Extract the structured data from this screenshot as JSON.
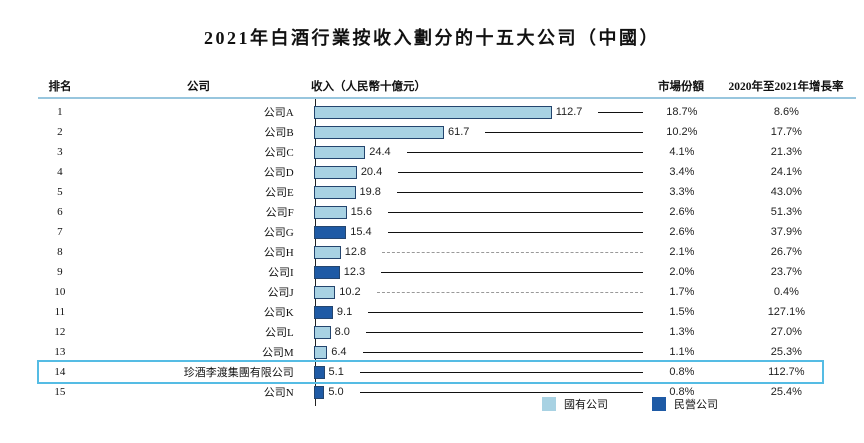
{
  "page": {
    "title": "2021年白酒行業按收入劃分的十五大公司（中國）"
  },
  "table": {
    "headers": {
      "rank": "排名",
      "company": "公司",
      "revenue": "收入（人民幣十億元）",
      "market_share": "市場份額",
      "growth": "2020年至2021年增長率"
    }
  },
  "legend": {
    "items": [
      {
        "label": "國有公司",
        "ownership": "state",
        "color": "#a8d2e3"
      },
      {
        "label": "民營公司",
        "ownership": "private",
        "color": "#1e5aa5"
      }
    ]
  },
  "colors": {
    "state_owned_bar": "#a8d2e3",
    "private_bar": "#1e5aa5",
    "bar_border": "#24456e",
    "highlight_border": "#55bce4",
    "header_rule": "#98c6de",
    "leader_solid": "#111111",
    "leader_dashed": "#999999"
  },
  "chart_data": {
    "type": "bar",
    "orientation": "horizontal",
    "title": "2021年白酒行業按收入劃分的十五大公司（中國）",
    "value_unit": "人民幣十億元",
    "value_axis_range": [
      0,
      120
    ],
    "legend_position": "bottom",
    "series_legend": [
      "國有公司",
      "民營公司"
    ],
    "rows": [
      {
        "rank": "1",
        "company": "公司A",
        "revenue": 112.7,
        "market_share": "18.7%",
        "growth": "8.6%",
        "ownership": "state",
        "leader_style": "solid",
        "highlighted": false
      },
      {
        "rank": "2",
        "company": "公司B",
        "revenue": 61.7,
        "market_share": "10.2%",
        "growth": "17.7%",
        "ownership": "state",
        "leader_style": "solid",
        "highlighted": false
      },
      {
        "rank": "3",
        "company": "公司C",
        "revenue": 24.4,
        "market_share": "4.1%",
        "growth": "21.3%",
        "ownership": "state",
        "leader_style": "solid",
        "highlighted": false
      },
      {
        "rank": "4",
        "company": "公司D",
        "revenue": 20.4,
        "market_share": "3.4%",
        "growth": "24.1%",
        "ownership": "state",
        "leader_style": "solid",
        "highlighted": false
      },
      {
        "rank": "5",
        "company": "公司E",
        "revenue": 19.8,
        "market_share": "3.3%",
        "growth": "43.0%",
        "ownership": "state",
        "leader_style": "solid",
        "highlighted": false
      },
      {
        "rank": "6",
        "company": "公司F",
        "revenue": 15.6,
        "market_share": "2.6%",
        "growth": "51.3%",
        "ownership": "state",
        "leader_style": "solid",
        "highlighted": false
      },
      {
        "rank": "7",
        "company": "公司G",
        "revenue": 15.4,
        "market_share": "2.6%",
        "growth": "37.9%",
        "ownership": "private",
        "leader_style": "solid",
        "highlighted": false
      },
      {
        "rank": "8",
        "company": "公司H",
        "revenue": 12.8,
        "market_share": "2.1%",
        "growth": "26.7%",
        "ownership": "state",
        "leader_style": "dashed",
        "highlighted": false
      },
      {
        "rank": "9",
        "company": "公司I",
        "revenue": 12.3,
        "market_share": "2.0%",
        "growth": "23.7%",
        "ownership": "private",
        "leader_style": "solid",
        "highlighted": false
      },
      {
        "rank": "10",
        "company": "公司J",
        "revenue": 10.2,
        "market_share": "1.7%",
        "growth": "0.4%",
        "ownership": "state",
        "leader_style": "dashed",
        "highlighted": false
      },
      {
        "rank": "11",
        "company": "公司K",
        "revenue": 9.1,
        "market_share": "1.5%",
        "growth": "127.1%",
        "ownership": "private",
        "leader_style": "solid",
        "highlighted": false
      },
      {
        "rank": "12",
        "company": "公司L",
        "revenue": 8.0,
        "market_share": "1.3%",
        "growth": "27.0%",
        "ownership": "state",
        "leader_style": "solid",
        "highlighted": false
      },
      {
        "rank": "13",
        "company": "公司M",
        "revenue": 6.4,
        "market_share": "1.1%",
        "growth": "25.3%",
        "ownership": "state",
        "leader_style": "solid",
        "highlighted": false
      },
      {
        "rank": "14",
        "company": "珍酒李渡集團有限公司",
        "revenue": 5.1,
        "market_share": "0.8%",
        "growth": "112.7%",
        "ownership": "private",
        "leader_style": "solid",
        "highlighted": true
      },
      {
        "rank": "15",
        "company": "公司N",
        "revenue": 5.0,
        "market_share": "0.8%",
        "growth": "25.4%",
        "ownership": "private",
        "leader_style": "solid",
        "highlighted": false
      }
    ]
  }
}
